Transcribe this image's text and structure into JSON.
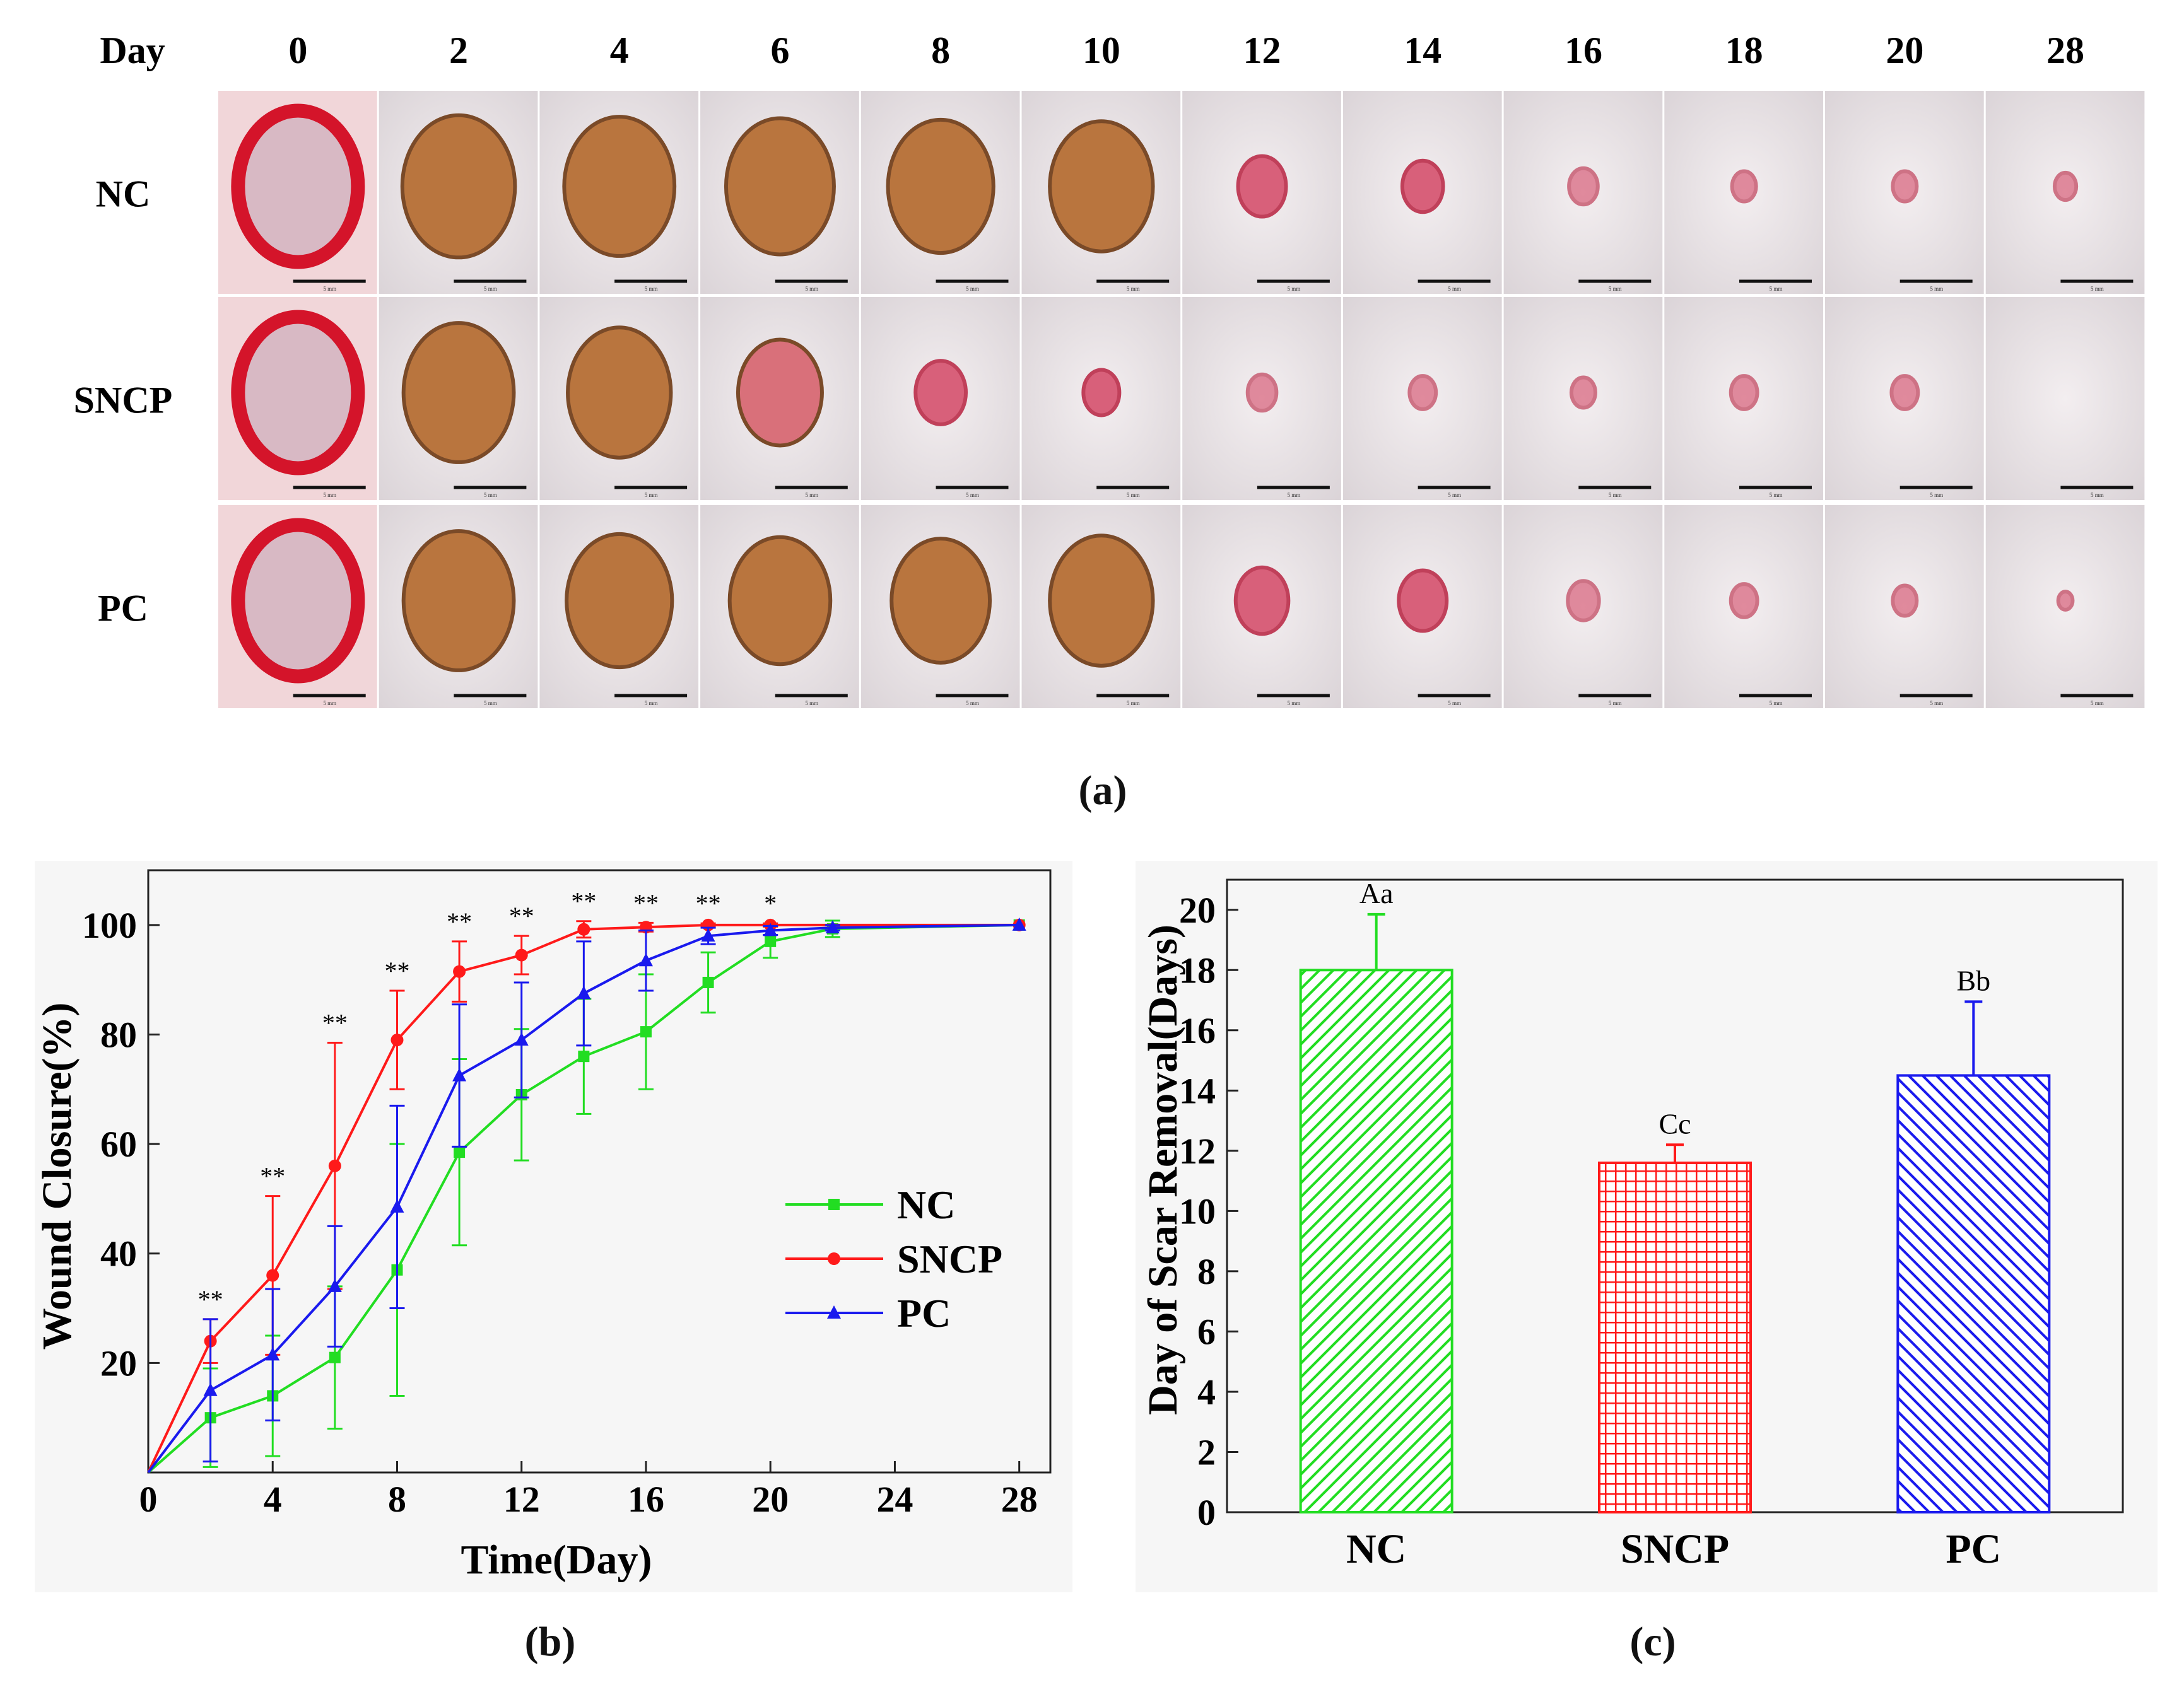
{
  "panel_a": {
    "caption": "(a)",
    "day_header": "Day",
    "days": [
      "0",
      "2",
      "4",
      "6",
      "8",
      "10",
      "12",
      "14",
      "16",
      "18",
      "20",
      "28"
    ],
    "groups": [
      "NC",
      "SNCP",
      "PC"
    ],
    "scale_label": "5 mm",
    "wound_size": [
      [
        1.0,
        0.94,
        0.92,
        0.9,
        0.88,
        0.86,
        0.4,
        0.34,
        0.24,
        0.2,
        0.2,
        0.18
      ],
      [
        1.0,
        0.92,
        0.86,
        0.7,
        0.42,
        0.3,
        0.24,
        0.22,
        0.2,
        0.22,
        0.22,
        0.0
      ],
      [
        1.0,
        0.92,
        0.88,
        0.84,
        0.82,
        0.86,
        0.44,
        0.4,
        0.26,
        0.22,
        0.2,
        0.12
      ]
    ],
    "wound_color": [
      "#c9a227",
      "#c5313d",
      "#8a5a3a"
    ]
  },
  "panel_b_caption": "(b)",
  "panel_c_caption": "(c)",
  "chart_data": [
    {
      "type": "line",
      "xlabel": "Time(Day)",
      "ylabel": "Wound Closure(%)",
      "xlim": [
        0,
        29
      ],
      "ylim": [
        0,
        110
      ],
      "xticks": [
        0,
        4,
        8,
        12,
        16,
        20,
        24,
        28
      ],
      "yticks": [
        20,
        40,
        60,
        80,
        100
      ],
      "legend_position": "center-right",
      "series": [
        {
          "name": "NC",
          "color": "#22dd22",
          "marker": "square",
          "x": [
            0,
            2,
            4,
            6,
            8,
            10,
            12,
            14,
            16,
            18,
            20,
            22,
            28
          ],
          "y": [
            0,
            10,
            14,
            21,
            37,
            58.5,
            69,
            76,
            80.5,
            89.5,
            97,
            99.3,
            100
          ],
          "err": [
            0,
            9,
            11,
            13,
            23,
            17,
            12,
            10.5,
            10.5,
            5.5,
            3,
            1.5,
            0
          ]
        },
        {
          "name": "SNCP",
          "color": "#ff1a1a",
          "marker": "circle",
          "x": [
            0,
            2,
            4,
            6,
            8,
            10,
            12,
            14,
            16,
            18,
            20,
            28
          ],
          "y": [
            0,
            24,
            36,
            56,
            79,
            91.5,
            94.5,
            99.2,
            99.6,
            100,
            100,
            100
          ],
          "err": [
            0,
            4,
            14.5,
            22.5,
            9,
            5.5,
            3.5,
            1.5,
            0.8,
            0.3,
            0.3,
            0
          ]
        },
        {
          "name": "PC",
          "color": "#1a1aee",
          "marker": "triangle",
          "x": [
            0,
            2,
            4,
            6,
            8,
            10,
            12,
            14,
            16,
            18,
            20,
            22,
            28
          ],
          "y": [
            0,
            15,
            21.5,
            34,
            48.5,
            72.5,
            79,
            87.5,
            93.5,
            98,
            99,
            99.5,
            100
          ],
          "err": [
            0,
            13,
            12,
            11,
            18.5,
            13,
            10.5,
            9.5,
            5.5,
            1.5,
            0.8,
            0.5,
            0
          ]
        }
      ],
      "annotations": [
        {
          "x": 2,
          "text": "**"
        },
        {
          "x": 4,
          "text": "**"
        },
        {
          "x": 6,
          "text": "**"
        },
        {
          "x": 8,
          "text": "**"
        },
        {
          "x": 10,
          "text": "**"
        },
        {
          "x": 12,
          "text": "**"
        },
        {
          "x": 14,
          "text": "**"
        },
        {
          "x": 16,
          "text": "**"
        },
        {
          "x": 18,
          "text": "**"
        },
        {
          "x": 20,
          "text": "*"
        }
      ]
    },
    {
      "type": "bar",
      "categories": [
        "NC",
        "SNCP",
        "PC"
      ],
      "values": [
        18,
        11.6,
        14.5
      ],
      "errors": [
        1.85,
        0.6,
        2.45
      ],
      "letters": [
        "Aa",
        "Cc",
        "Bb"
      ],
      "colors": [
        "#22dd22",
        "#ff1a1a",
        "#1a1aee"
      ],
      "hatch": [
        "diagonal-up",
        "grid",
        "diagonal-down"
      ],
      "ylabel": "Day of Scar Removal(Days)",
      "xlabel": "",
      "ylim": [
        0,
        21
      ],
      "yticks": [
        0,
        2,
        4,
        6,
        8,
        10,
        12,
        14,
        16,
        18,
        20
      ]
    }
  ]
}
